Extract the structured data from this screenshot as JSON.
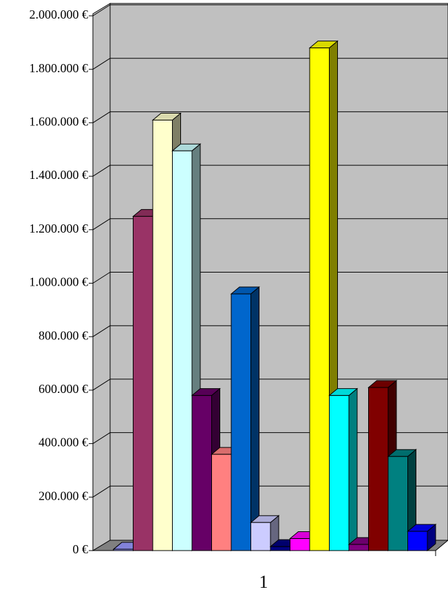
{
  "chart_data": {
    "type": "bar3d",
    "categories": [
      "1"
    ],
    "series": [
      {
        "color": "#9999FF",
        "values": [
          5000
        ]
      },
      {
        "color": "#993366",
        "values": [
          1250000
        ]
      },
      {
        "color": "#FFFFCC",
        "values": [
          1610000
        ]
      },
      {
        "color": "#CCFFFF",
        "values": [
          1495000
        ]
      },
      {
        "color": "#660066",
        "values": [
          580000
        ]
      },
      {
        "color": "#FF8080",
        "values": [
          360000
        ]
      },
      {
        "color": "#0066CC",
        "values": [
          960000
        ]
      },
      {
        "color": "#CCCCFF",
        "values": [
          105000
        ]
      },
      {
        "color": "#000080",
        "values": [
          15000
        ]
      },
      {
        "color": "#FF00FF",
        "values": [
          45000
        ]
      },
      {
        "color": "#FFFF00",
        "values": [
          1880000
        ]
      },
      {
        "color": "#00FFFF",
        "values": [
          580000
        ]
      },
      {
        "color": "#800080",
        "values": [
          23000
        ]
      },
      {
        "color": "#800000",
        "values": [
          610000
        ]
      },
      {
        "color": "#008080",
        "values": [
          352000
        ]
      },
      {
        "color": "#0000FF",
        "values": [
          72000
        ]
      }
    ],
    "ylim": [
      0,
      2000000
    ],
    "yticks": [
      {
        "value": 0,
        "label": "0 €"
      },
      {
        "value": 200000,
        "label": "200.000 €"
      },
      {
        "value": 400000,
        "label": "400.000 €"
      },
      {
        "value": 600000,
        "label": "600.000 €"
      },
      {
        "value": 800000,
        "label": "800.000 €"
      },
      {
        "value": 1000000,
        "label": "1.000.000 €"
      },
      {
        "value": 1200000,
        "label": "1.200.000 €"
      },
      {
        "value": 1400000,
        "label": "1.400.000 €"
      },
      {
        "value": 1600000,
        "label": "1.600.000 €"
      },
      {
        "value": 1800000,
        "label": "1.800.000 €"
      },
      {
        "value": 2000000,
        "label": "2.000.000 €"
      }
    ],
    "grid": true
  }
}
